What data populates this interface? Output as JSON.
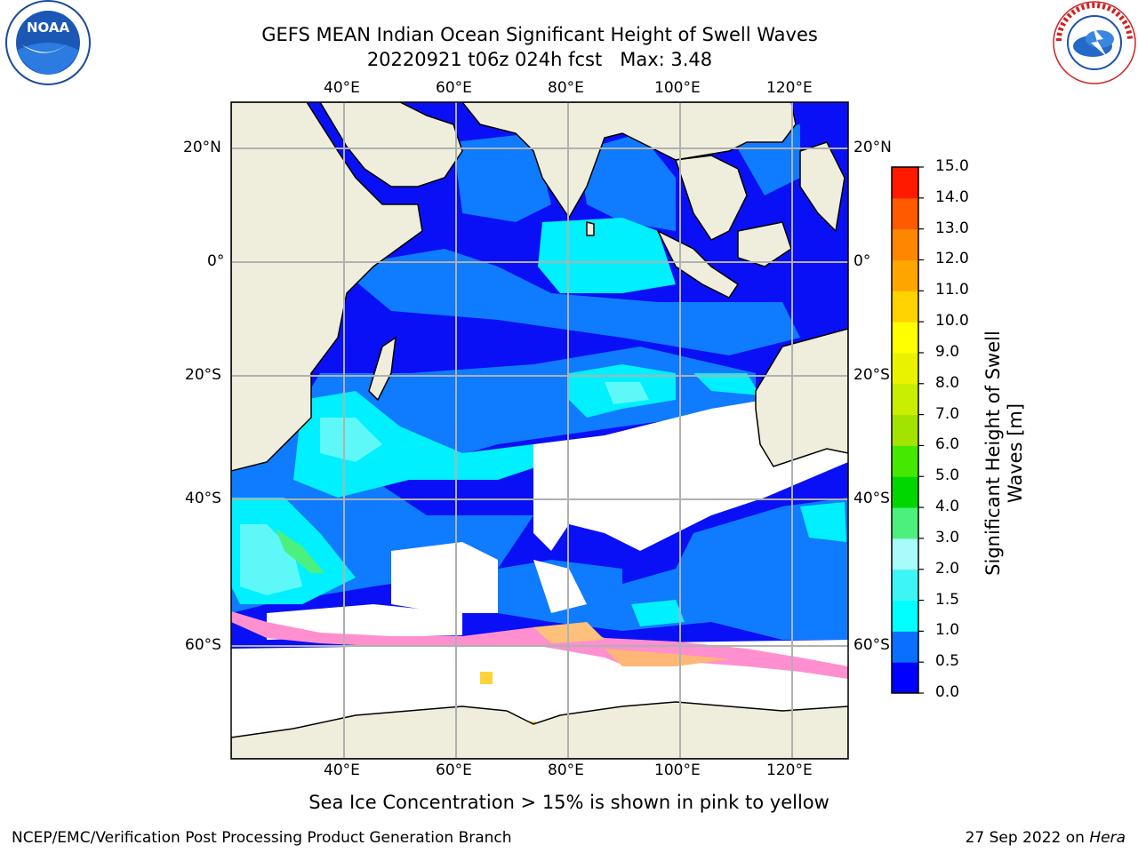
{
  "header": {
    "title_line1": "GEFS MEAN Indian Ocean Significant Height of Swell Waves",
    "title_line2": "20220921 t06z 024h fcst   Max: 3.48"
  },
  "logos": {
    "noaa": "NOAA",
    "noaa_ring": "NATIONAL OCEANIC AND ATMOSPHERIC ADMINISTRATION · U.S. DEPARTMENT OF COMMERCE",
    "nws_ring": "NATIONAL WEATHER SERVICE"
  },
  "map": {
    "lon_labels": [
      "40°E",
      "60°E",
      "80°E",
      "100°E",
      "120°E"
    ],
    "lat_labels_left": [
      "20°N",
      "0°",
      "20°S",
      "40°S",
      "60°S"
    ],
    "lat_labels_right": [
      "20°N",
      "0°",
      "20°S",
      "40°S",
      "60°S"
    ],
    "colors": {
      "land": "#efeedc",
      "ice_mask": "#ffffff",
      "grid": "#b0b0b0"
    }
  },
  "colorbar": {
    "label": "Significant Height of Swell Waves [m]",
    "ticks": [
      "0.0",
      "0.5",
      "1.0",
      "1.5",
      "2.0",
      "3.0",
      "4.0",
      "5.0",
      "6.0",
      "7.0",
      "8.0",
      "9.0",
      "10.0",
      "11.0",
      "12.0",
      "13.0",
      "14.0",
      "15.0"
    ],
    "colors": [
      "#0000ff",
      "#0a6fff",
      "#00ffff",
      "#3df5f5",
      "#a9fbf9",
      "#4cf07d",
      "#00d700",
      "#44e800",
      "#a2e300",
      "#c9ee00",
      "#e9f300",
      "#ffff00",
      "#ffd200",
      "#ffa500",
      "#ff8600",
      "#ff5a00",
      "#ff1a00"
    ]
  },
  "footer": {
    "sea_ice_note": "Sea Ice Concentration > 15% is shown in pink to yellow",
    "left": "NCEP/EMC/Verification Post Processing Product Generation Branch",
    "right_date": "27 Sep 2022 on ",
    "right_host": "Hera"
  }
}
